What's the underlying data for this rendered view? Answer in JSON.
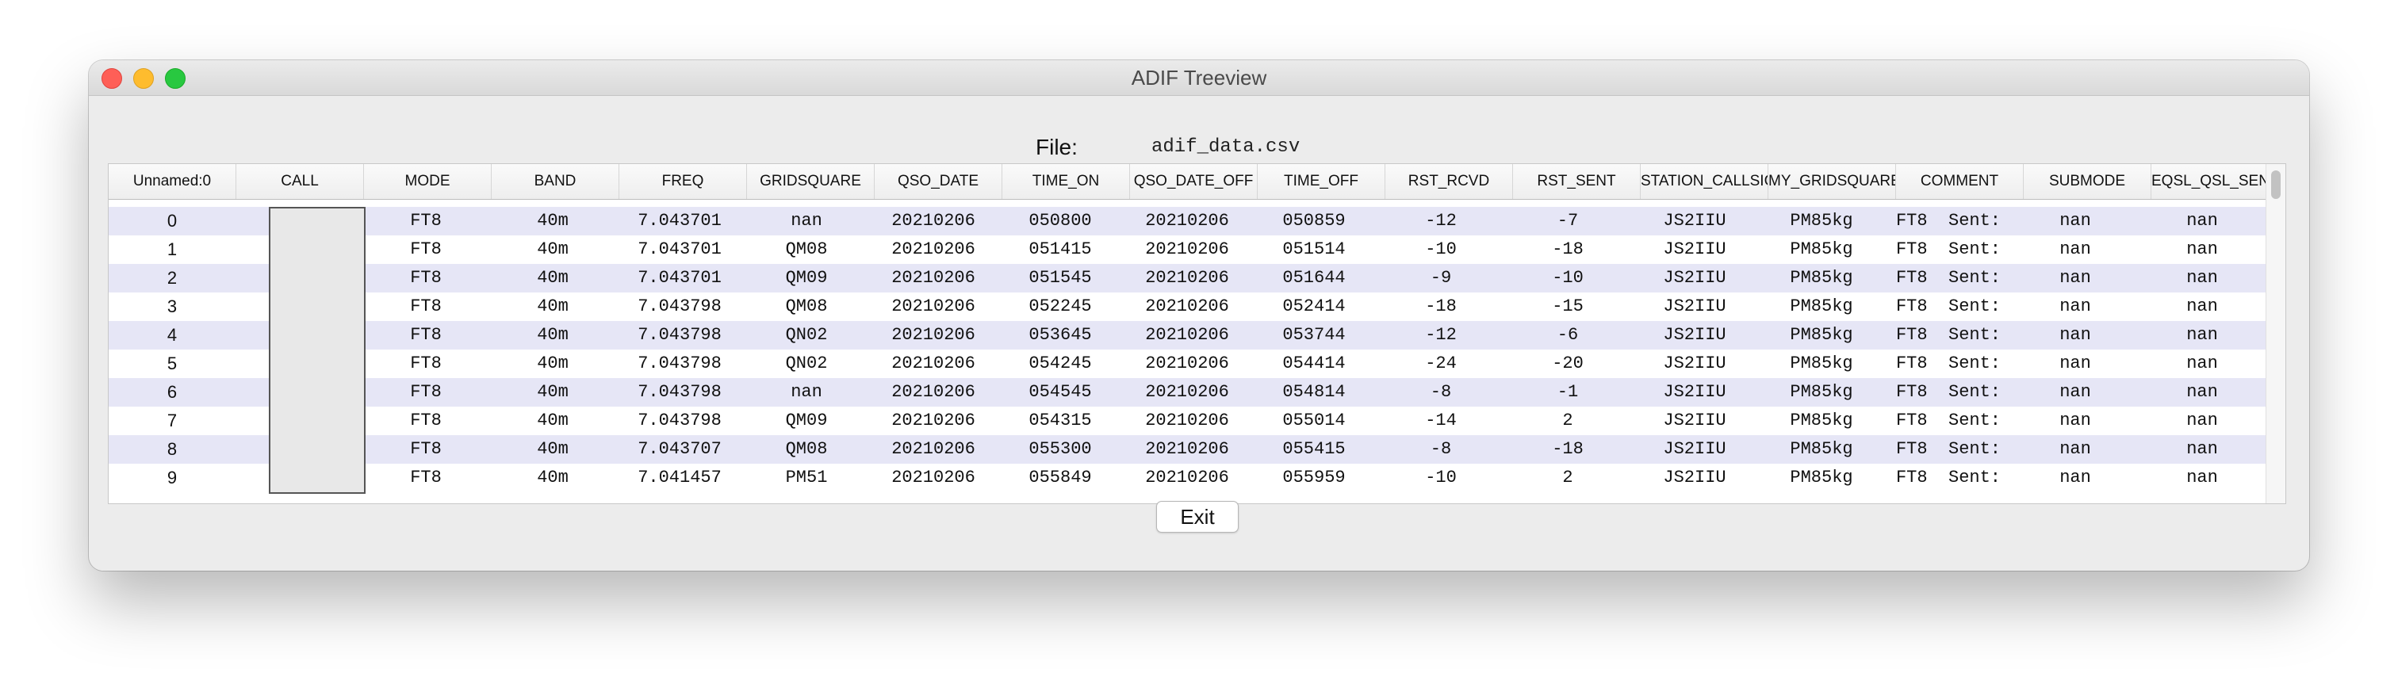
{
  "window": {
    "title": "ADIF Treeview"
  },
  "file": {
    "label": "File:",
    "name": "adif_data.csv"
  },
  "table": {
    "columns": [
      "Unnamed:0",
      "CALL",
      "MODE",
      "BAND",
      "FREQ",
      "GRIDSQUARE",
      "QSO_DATE",
      "TIME_ON",
      "QSO_DATE_OFF",
      "TIME_OFF",
      "RST_RCVD",
      "RST_SENT",
      "STATION_CALLSIGN",
      "MY_GRIDSQUARE",
      "COMMENT",
      "SUBMODE",
      "EQSL_QSL_SENT"
    ],
    "rows": [
      [
        "0",
        "",
        "FT8",
        "40m",
        "7.043701",
        "nan",
        "20210206",
        "050800",
        "20210206",
        "050859",
        "-12",
        "-7",
        "JS2IIU",
        "PM85kg",
        "FT8  Sent:",
        "nan",
        "nan"
      ],
      [
        "1",
        "",
        "FT8",
        "40m",
        "7.043701",
        "QM08",
        "20210206",
        "051415",
        "20210206",
        "051514",
        "-10",
        "-18",
        "JS2IIU",
        "PM85kg",
        "FT8  Sent:",
        "nan",
        "nan"
      ],
      [
        "2",
        "",
        "FT8",
        "40m",
        "7.043701",
        "QM09",
        "20210206",
        "051545",
        "20210206",
        "051644",
        "-9",
        "-10",
        "JS2IIU",
        "PM85kg",
        "FT8  Sent:",
        "nan",
        "nan"
      ],
      [
        "3",
        "",
        "FT8",
        "40m",
        "7.043798",
        "QM08",
        "20210206",
        "052245",
        "20210206",
        "052414",
        "-18",
        "-15",
        "JS2IIU",
        "PM85kg",
        "FT8  Sent:",
        "nan",
        "nan"
      ],
      [
        "4",
        "",
        "FT8",
        "40m",
        "7.043798",
        "QN02",
        "20210206",
        "053645",
        "20210206",
        "053744",
        "-12",
        "-6",
        "JS2IIU",
        "PM85kg",
        "FT8  Sent:",
        "nan",
        "nan"
      ],
      [
        "5",
        "",
        "FT8",
        "40m",
        "7.043798",
        "QN02",
        "20210206",
        "054245",
        "20210206",
        "054414",
        "-24",
        "-20",
        "JS2IIU",
        "PM85kg",
        "FT8  Sent:",
        "nan",
        "nan"
      ],
      [
        "6",
        "",
        "FT8",
        "40m",
        "7.043798",
        "nan",
        "20210206",
        "054545",
        "20210206",
        "054814",
        "-8",
        "-1",
        "JS2IIU",
        "PM85kg",
        "FT8  Sent:",
        "nan",
        "nan"
      ],
      [
        "7",
        "",
        "FT8",
        "40m",
        "7.043798",
        "QM09",
        "20210206",
        "054315",
        "20210206",
        "055014",
        "-14",
        "2",
        "JS2IIU",
        "PM85kg",
        "FT8  Sent:",
        "nan",
        "nan"
      ],
      [
        "8",
        "",
        "FT8",
        "40m",
        "7.043707",
        "QM08",
        "20210206",
        "055300",
        "20210206",
        "055415",
        "-8",
        "-18",
        "JS2IIU",
        "PM85kg",
        "FT8  Sent:",
        "nan",
        "nan"
      ],
      [
        "9",
        "",
        "FT8",
        "40m",
        "7.041457",
        "PM51",
        "20210206",
        "055849",
        "20210206",
        "055959",
        "-10",
        "2",
        "JS2IIU",
        "PM85kg",
        "FT8  Sent:",
        "nan",
        "nan"
      ]
    ]
  },
  "buttons": {
    "exit": "Exit"
  },
  "colors": {
    "row_alt": "#e6e6f6",
    "close": "#fe5f57",
    "minimize": "#febc2e",
    "maximize": "#28c840"
  }
}
